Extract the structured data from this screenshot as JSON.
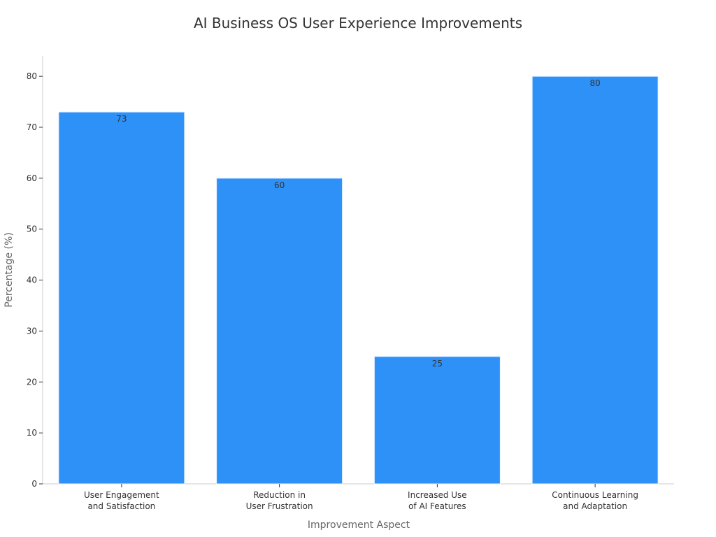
{
  "chart_data": {
    "type": "bar",
    "title": "AI Business OS User Experience Improvements",
    "xlabel": "Improvement Aspect",
    "ylabel": "Percentage (%)",
    "categories": [
      [
        "User Engagement",
        "and Satisfaction"
      ],
      [
        "Reduction in",
        "User Frustration"
      ],
      [
        "Increased Use",
        "of AI Features"
      ],
      [
        "Continuous Learning",
        "and Adaptation"
      ]
    ],
    "values": [
      73,
      60,
      25,
      80
    ],
    "data_labels": [
      "73",
      "60",
      "25",
      "80"
    ],
    "ylim": [
      0,
      84
    ],
    "yticks": [
      0,
      10,
      20,
      30,
      40,
      50,
      60,
      70,
      80
    ],
    "ytick_labels": [
      "0",
      "10",
      "20",
      "30",
      "40",
      "50",
      "60",
      "70",
      "80"
    ],
    "bar_color": "#2e91f8",
    "grid": false
  }
}
